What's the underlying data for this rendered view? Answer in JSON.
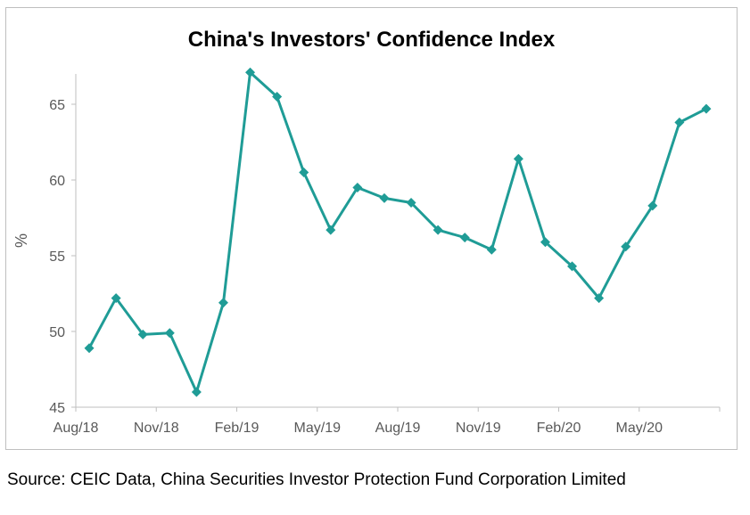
{
  "title": "China's Investors' Confidence Index",
  "source": "Source: CEIC Data, China Securities Investor Protection Fund Corporation Limited",
  "chart_data": {
    "type": "line",
    "title": "China's Investors' Confidence Index",
    "xlabel": "",
    "ylabel": "%",
    "x": [
      "Aug/18",
      "Sep/18",
      "Oct/18",
      "Nov/18",
      "Dec/18",
      "Jan/19",
      "Feb/19",
      "Mar/19",
      "Apr/19",
      "May/19",
      "Jun/19",
      "Jul/19",
      "Aug/19",
      "Sep/19",
      "Oct/19",
      "Nov/19",
      "Dec/19",
      "Jan/20",
      "Feb/20",
      "Mar/20",
      "Apr/20",
      "May/20",
      "Jun/20",
      "Jul/20"
    ],
    "x_tick_labels": [
      "Aug/18",
      "Nov/18",
      "Feb/19",
      "May/19",
      "Aug/19",
      "Nov/19",
      "Feb/20",
      "May/20"
    ],
    "x_tick_indices": [
      0,
      3,
      6,
      9,
      12,
      15,
      18,
      21
    ],
    "series": [
      {
        "values": [
          48.9,
          52.2,
          49.8,
          49.9,
          46.0,
          51.9,
          67.1,
          65.5,
          60.5,
          56.7,
          59.5,
          58.8,
          58.5,
          56.7,
          56.2,
          55.4,
          61.4,
          55.9,
          54.3,
          52.2,
          55.6,
          58.3,
          63.8,
          64.7
        ]
      }
    ],
    "ylim": [
      45,
      67
    ],
    "y_ticks": [
      45,
      50,
      55,
      60,
      65
    ],
    "grid": false,
    "legend": "none",
    "colors": {
      "line": "#1f9c96",
      "axis": "#bfbfbf",
      "tick_text": "#595959"
    }
  }
}
